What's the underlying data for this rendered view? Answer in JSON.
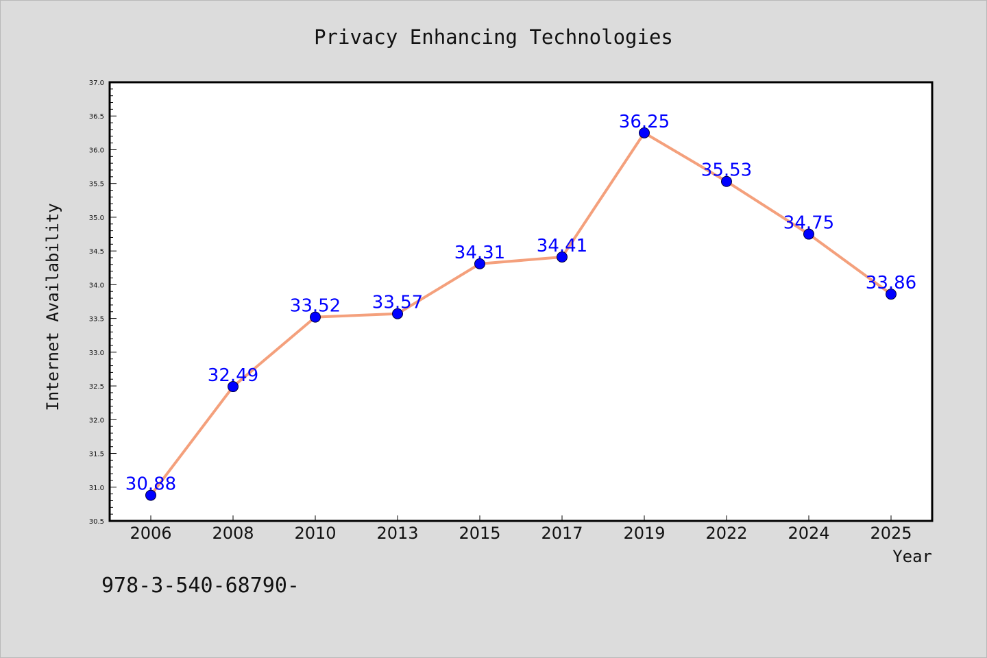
{
  "chart_data": {
    "type": "line",
    "title": "Privacy Enhancing Technologies",
    "xlabel": "Year",
    "ylabel": "Internet Availability",
    "categories": [
      "2006",
      "2008",
      "2010",
      "2013",
      "2015",
      "2017",
      "2019",
      "2022",
      "2024",
      "2025"
    ],
    "series": [
      {
        "values": [
          30.88,
          32.49,
          33.52,
          33.57,
          34.31,
          34.41,
          36.25,
          35.53,
          34.75,
          33.86
        ],
        "data_labels": [
          "30.88",
          "32.49",
          "33.52",
          "33.57",
          "34.31",
          "34.41",
          "36.25",
          "35.53",
          "34.75",
          "33.86"
        ],
        "line_color": "#f4a07c",
        "marker_color": "#0000ff"
      }
    ],
    "ylim": [
      30.5,
      37.0
    ],
    "yticks": [
      "30.5",
      "31.0",
      "31.5",
      "32.0",
      "32.5",
      "33.0",
      "33.5",
      "34.0",
      "34.5",
      "35.0",
      "35.5",
      "36.0",
      "36.5",
      "37.0"
    ],
    "grid": false,
    "legend": "none"
  },
  "footer": {
    "text": "978-3-540-68790-"
  },
  "colors": {
    "background": "#dcdcdc",
    "plot_background": "#ffffff",
    "axis": "#000000"
  }
}
